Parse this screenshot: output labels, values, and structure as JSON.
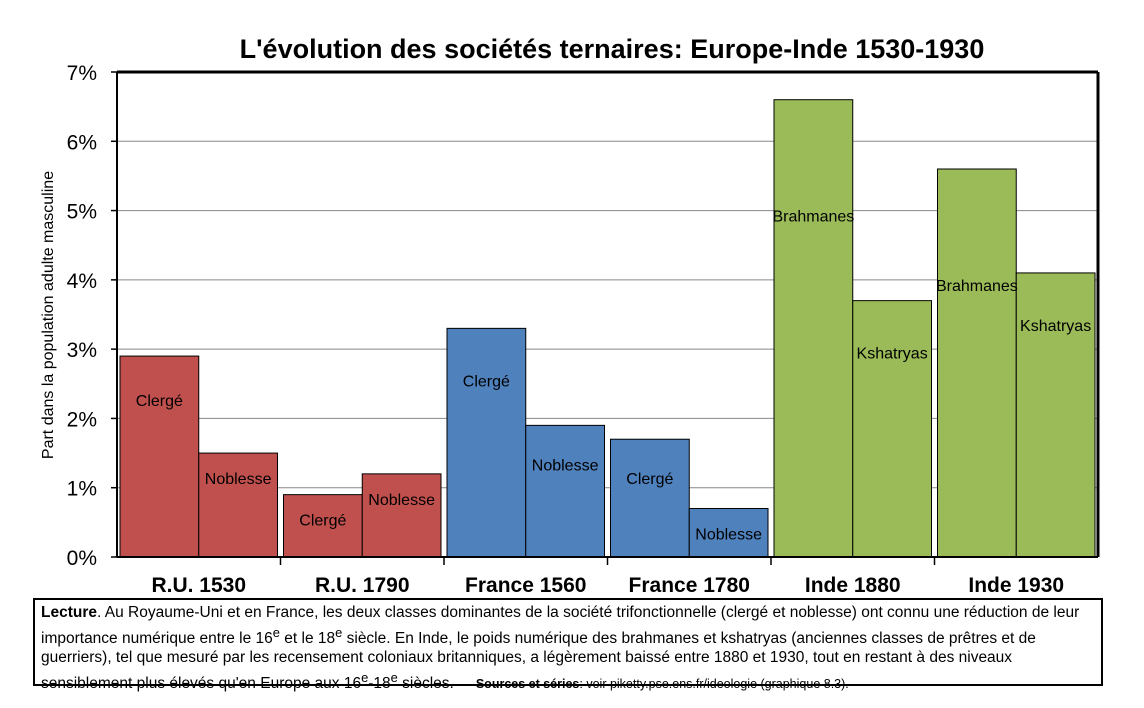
{
  "colors": {
    "europe_uk": "#c0504d",
    "europe_fr": "#4f81bd",
    "india": "#9bbb59"
  },
  "chart_data": {
    "type": "bar",
    "title": "L'évolution des sociétés ternaires: Europe-Inde 1530-1930",
    "ylabel": "Part dans la population adulte masculine",
    "xlabel": "",
    "ylim": [
      0,
      7
    ],
    "yticks": [
      "0%",
      "1%",
      "2%",
      "3%",
      "4%",
      "5%",
      "6%",
      "7%"
    ],
    "grid": true,
    "groups": [
      {
        "name": "R.U. 1530",
        "color": "#c0504d",
        "bars": [
          {
            "label": "Clergé",
            "value": 2.9
          },
          {
            "label": "Noblesse",
            "value": 1.5
          }
        ]
      },
      {
        "name": "R.U. 1790",
        "color": "#c0504d",
        "bars": [
          {
            "label": "Clergé",
            "value": 0.9
          },
          {
            "label": "Noblesse",
            "value": 1.2
          }
        ]
      },
      {
        "name": "France 1560",
        "color": "#4f81bd",
        "bars": [
          {
            "label": "Clergé",
            "value": 3.3
          },
          {
            "label": "Noblesse",
            "value": 1.9
          }
        ]
      },
      {
        "name": "France 1780",
        "color": "#4f81bd",
        "bars": [
          {
            "label": "Clergé",
            "value": 1.7
          },
          {
            "label": "Noblesse",
            "value": 0.7
          }
        ]
      },
      {
        "name": "Inde 1880",
        "color": "#9bbb59",
        "bars": [
          {
            "label": "Brahmanes",
            "value": 6.6
          },
          {
            "label": "Kshatryas",
            "value": 3.7
          }
        ]
      },
      {
        "name": "Inde 1930",
        "color": "#9bbb59",
        "bars": [
          {
            "label": "Brahmanes",
            "value": 5.6
          },
          {
            "label": "Kshatryas",
            "value": 4.1
          }
        ]
      }
    ]
  },
  "note": {
    "lead": "Lecture",
    "body_1": ". Au Royaume-Uni et en France, les deux classes dominantes de la société trifonctionnelle (clergé et noblesse) ont connu une réduction de leur importance numérique entre le 16",
    "sup_1": "e",
    "body_2": " et le 18",
    "sup_2": "e",
    "body_3": " siècle. En Inde, le poids numérique des brahmanes et kshatryas (anciennes classes de prêtres et de guerriers), tel que mesuré par les recensement coloniaux britanniques, a légèrement baissé entre 1880 et 1930, tout en restant à des niveaux sensiblement plus élevés qu'en Europe aux 16",
    "sup_3": "e",
    "body_4": "-18",
    "sup_4": "e",
    "body_5": " siècles.",
    "sources_lead": "Sources et séries",
    "sources_text": ": voir piketty.pse.ens.fr/ideologie (graphique 8.3)."
  }
}
